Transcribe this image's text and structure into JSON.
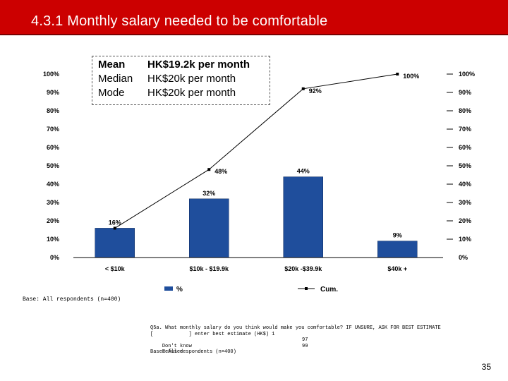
{
  "slide": {
    "title": "4.3.1 Monthly salary needed to be comfortable",
    "page_number": "35",
    "base_note": "Base: All respondents (n=400)"
  },
  "stats": [
    {
      "label": "Mean",
      "value": "HK$19.2k per month"
    },
    {
      "label": "Median",
      "value": "HK$20k per month"
    },
    {
      "label": "Mode",
      "value": "HK$20k per month"
    }
  ],
  "footnote": {
    "question": "Q5a. What monthly salary do you think would make you comfortable? IF UNSURE, ASK FOR BEST ESTIMATE",
    "enter": "[            ] enter best estimate (HK$) 1",
    "rows": [
      {
        "label": "Don't know",
        "code": "97"
      },
      {
        "label": "Refused",
        "code": "99"
      }
    ],
    "base": "Base: All respondents (n=400)"
  },
  "colors": {
    "title_bar": "#cc0000",
    "bar": "#1f4e9c",
    "line": "#000000"
  },
  "chart_data": {
    "type": "bar",
    "categories": [
      "< $10k",
      "$10k - $19.9k",
      "$20k -$39.9k",
      "$40k +"
    ],
    "series": [
      {
        "name": "%",
        "kind": "bar",
        "values": [
          16,
          32,
          44,
          9
        ],
        "labels": [
          "16%",
          "32%",
          "44%",
          "9%"
        ]
      },
      {
        "name": "Cum.",
        "kind": "line",
        "values": [
          16,
          48,
          92,
          100
        ],
        "labels": [
          "",
          "48%",
          "92%",
          "100%"
        ]
      }
    ],
    "ylim": [
      0,
      100
    ],
    "yticks": [
      "0%",
      "10%",
      "20%",
      "30%",
      "40%",
      "50%",
      "60%",
      "70%",
      "80%",
      "90%",
      "100%"
    ],
    "legend": "bottom"
  }
}
